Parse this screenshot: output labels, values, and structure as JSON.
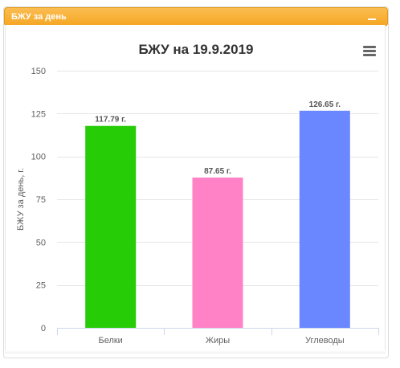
{
  "panel": {
    "title": "БЖУ за день"
  },
  "icons": {
    "collapse": "minus-icon",
    "menu": "hamburger-menu-icon"
  },
  "chart_data": {
    "type": "bar",
    "title": "БЖУ на 19.9.2019",
    "xlabel": "",
    "ylabel": "БЖУ за день, г.",
    "categories": [
      "Белки",
      "Жиры",
      "Углеводы"
    ],
    "values": [
      117.79,
      87.65,
      126.65
    ],
    "data_labels": [
      "117.79 г.",
      "87.65 г.",
      "126.65 г."
    ],
    "colors": [
      "#26cc06",
      "#ff82c6",
      "#6b87ff"
    ],
    "ylim": [
      0,
      150
    ],
    "yticks": [
      0,
      25,
      50,
      75,
      100,
      125,
      150
    ],
    "grid": true,
    "legend": "none"
  }
}
